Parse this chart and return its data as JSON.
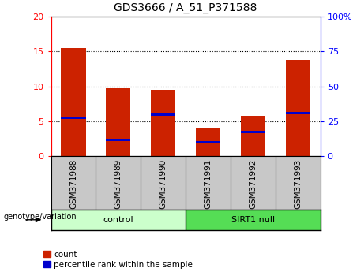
{
  "title": "GDS3666 / A_51_P371588",
  "samples": [
    "GSM371988",
    "GSM371989",
    "GSM371990",
    "GSM371991",
    "GSM371992",
    "GSM371993"
  ],
  "count_values": [
    15.5,
    9.8,
    9.5,
    4.0,
    5.8,
    13.8
  ],
  "percentile_values": [
    27.5,
    11.5,
    30.0,
    10.0,
    17.5,
    31.0
  ],
  "left_ylim": [
    0,
    20
  ],
  "right_ylim": [
    0,
    100
  ],
  "left_yticks": [
    0,
    5,
    10,
    15,
    20
  ],
  "right_yticks": [
    0,
    25,
    50,
    75,
    100
  ],
  "right_yticklabels": [
    "0",
    "25",
    "50",
    "75",
    "100%"
  ],
  "bar_color": "#cc2200",
  "percentile_color": "#0000cc",
  "bar_width": 0.55,
  "control_color": "#ccffcc",
  "sirt1_color": "#55dd55",
  "label_area_color": "#c8c8c8",
  "genotype_label": "genotype/variation",
  "legend_count_label": "count",
  "legend_percentile_label": "percentile rank within the sample"
}
